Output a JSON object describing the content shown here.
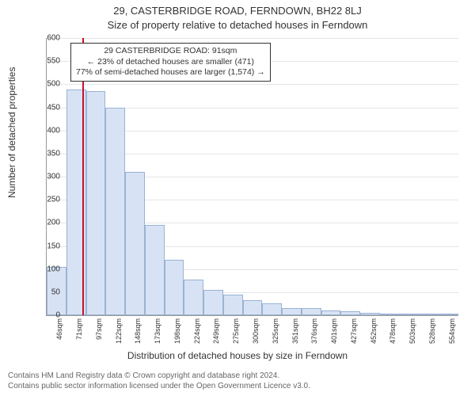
{
  "header": {
    "title": "29, CASTERBRIDGE ROAD, FERNDOWN, BH22 8LJ",
    "subtitle": "Size of property relative to detached houses in Ferndown"
  },
  "chart": {
    "type": "histogram",
    "ylabel": "Number of detached properties",
    "xlabel": "Distribution of detached houses by size in Ferndown",
    "label_fontsize": 12,
    "ylim": [
      0,
      600
    ],
    "ytick_step": 50,
    "x_categories": [
      "46sqm",
      "71sqm",
      "97sqm",
      "122sqm",
      "148sqm",
      "173sqm",
      "198sqm",
      "224sqm",
      "249sqm",
      "275sqm",
      "300sqm",
      "325sqm",
      "351sqm",
      "376sqm",
      "401sqm",
      "427sqm",
      "452sqm",
      "478sqm",
      "503sqm",
      "528sqm",
      "554sqm"
    ],
    "bars": [
      105,
      488,
      485,
      450,
      310,
      195,
      120,
      78,
      55,
      45,
      32,
      25,
      15,
      15,
      10,
      8,
      6,
      4,
      3,
      2,
      1
    ],
    "bar_fill": "#d7e3f4",
    "bar_border": "#9ab2d4",
    "background_color": "#ffffff",
    "grid_color": "#e6e6e6",
    "axis_color": "#999999",
    "marker": {
      "category_index": 1.8,
      "color": "#c8102e"
    },
    "annotation": {
      "line1": "29 CASTERBRIDGE ROAD: 91sqm",
      "line2": "← 23% of detached houses are smaller (471)",
      "line3": "77% of semi-detached houses are larger (1,574) →"
    }
  },
  "footer": {
    "line1": "Contains HM Land Registry data © Crown copyright and database right 2024.",
    "line2": "Contains public sector information licensed under the Open Government Licence v3.0."
  }
}
